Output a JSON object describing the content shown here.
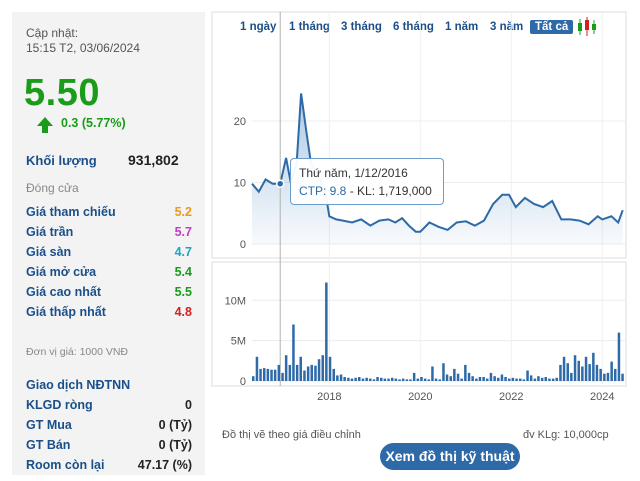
{
  "updated": {
    "label": "Cập nhật:",
    "time": "15:15 T2, 03/06/2024"
  },
  "price": "5.50",
  "change": "0.3 (5.77%)",
  "volume": {
    "label": "Khối lượng",
    "value": "931,802"
  },
  "close_label": "Đóng cửa",
  "price_rows": [
    {
      "label": "Giá tham chiếu",
      "value": "5.2",
      "color": "#e89a1c"
    },
    {
      "label": "Giá trần",
      "value": "5.7",
      "color": "#c43ac4"
    },
    {
      "label": "Giá sàn",
      "value": "4.7",
      "color": "#1aa6c4"
    },
    {
      "label": "Giá mở cửa",
      "value": "5.4",
      "color": "#1a9c1a"
    },
    {
      "label": "Giá cao nhất",
      "value": "5.5",
      "color": "#1a9c1a"
    },
    {
      "label": "Giá thấp nhất",
      "value": "4.8",
      "color": "#d22020"
    }
  ],
  "unit_note": "Đơn vị giá: 1000 VNĐ",
  "foreign": [
    {
      "label": "Giao dịch NĐTNN",
      "value": ""
    },
    {
      "label": "KLGD ròng",
      "value": "0"
    },
    {
      "label": "GT Mua",
      "value": "0 (Tỷ)"
    },
    {
      "label": "GT Bán",
      "value": "0 (Tỷ)"
    },
    {
      "label": "Room còn lại",
      "value": "47.17 (%)"
    }
  ],
  "tabs": [
    "1 ngày",
    "1 tháng",
    "3 tháng",
    "6 tháng",
    "1 năm",
    "3 năm",
    "Tất cả"
  ],
  "tooltip": {
    "line1": "Thứ năm, 1/12/2016",
    "line2a": "CTP: 9.8",
    "line2b": " - KL: 1,719,000"
  },
  "note_left": "Đồ thị vẽ theo giá điều chỉnh",
  "note_right": "đv KLg: 10,000cp",
  "tech_button": "Xem đồ thị kỹ thuật",
  "chart_data": [
    {
      "type": "area",
      "yticks": [
        "0",
        "10",
        "20"
      ],
      "ylim": [
        0,
        27
      ],
      "xlim": [
        2016.3,
        2024.5
      ],
      "series": [
        {
          "x": [
            2016.3,
            2016.45,
            2016.6,
            2016.75,
            2016.92,
            2017.05,
            2017.15,
            2017.28,
            2017.38,
            2017.5,
            2017.6,
            2017.75,
            2017.9,
            2018.0,
            2018.15,
            2018.3,
            2018.5,
            2018.7,
            2018.9,
            2019.1,
            2019.3,
            2019.45,
            2019.6,
            2019.75,
            2019.9,
            2020.0,
            2020.2,
            2020.4,
            2020.6,
            2020.8,
            2021.0,
            2021.2,
            2021.4,
            2021.6,
            2021.8,
            2021.95,
            2022.1,
            2022.3,
            2022.5,
            2022.7,
            2022.9,
            2023.1,
            2023.3,
            2023.5,
            2023.7,
            2023.9,
            2024.0,
            2024.2,
            2024.35,
            2024.45
          ],
          "y": [
            9.8,
            8.5,
            10.5,
            9.8,
            9.8,
            14,
            10,
            13,
            24.5,
            18,
            13,
            11,
            9,
            4.5,
            4,
            3.8,
            3.5,
            4,
            3,
            3.8,
            4,
            3.5,
            4.2,
            3,
            2,
            2,
            3.5,
            2.8,
            2.3,
            3.5,
            3.7,
            3,
            3.8,
            6.5,
            8,
            8,
            6,
            7.5,
            6.5,
            6,
            7,
            4,
            4,
            3.8,
            3.2,
            4.5,
            4,
            4.5,
            3.5,
            5.5
          ]
        }
      ]
    },
    {
      "type": "bar",
      "ylabel": "",
      "yticks": [
        "0",
        "5M",
        "10M"
      ],
      "xticks": [
        "2018",
        "2020",
        "2022",
        "2024"
      ],
      "ylim": [
        0,
        14000000
      ],
      "values": [
        600000,
        3000000,
        1500000,
        1600000,
        1500000,
        1400000,
        1400000,
        2000000,
        1000000,
        3200000,
        2000000,
        7000000,
        2000000,
        3000000,
        1300000,
        1800000,
        2000000,
        1900000,
        2700000,
        3200000,
        12200000,
        3000000,
        1500000,
        700000,
        800000,
        500000,
        400000,
        300000,
        400000,
        500000,
        300000,
        400000,
        300000,
        200000,
        500000,
        400000,
        300000,
        300000,
        400000,
        300000,
        200000,
        300000,
        200000,
        200000,
        1000000,
        300000,
        500000,
        300000,
        200000,
        1800000,
        300000,
        200000,
        2200000,
        800000,
        600000,
        1500000,
        900000,
        300000,
        2000000,
        1000000,
        600000,
        300000,
        500000,
        500000,
        300000,
        1000000,
        600000,
        400000,
        800000,
        500000,
        300000,
        400000,
        300000,
        300000,
        200000,
        1300000,
        700000,
        300000,
        600000,
        400000,
        500000,
        300000,
        300000,
        400000,
        2000000,
        3000000,
        2200000,
        1000000,
        3200000,
        2500000,
        1800000,
        3000000,
        2100000,
        3500000,
        2000000,
        1500000,
        900000,
        1000000,
        2400000,
        1500000,
        6000000,
        900000
      ]
    }
  ]
}
